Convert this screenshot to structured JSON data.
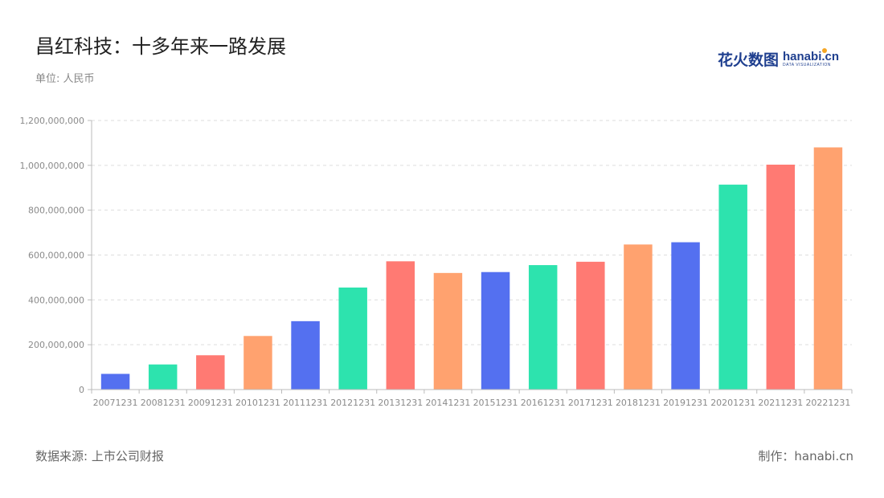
{
  "header": {
    "title": "昌红科技：十多年来一路发展",
    "unit": "单位: 人民币"
  },
  "logo": {
    "cn": "花火数图",
    "en": "hanabi.cn",
    "tagline": "DATA VISUALIZATION"
  },
  "footer": {
    "source": "数据来源: 上市公司财报",
    "credit": "制作：hanabi.cn"
  },
  "colors": {
    "palette": [
      "#5470f0",
      "#2de3ae",
      "#ff7a73",
      "#ffa26f"
    ],
    "grid": "#dddddd",
    "axis": "#bbbbbb"
  },
  "chart_data": {
    "type": "bar",
    "categories": [
      "20071231",
      "20081231",
      "20091231",
      "20101231",
      "20111231",
      "20121231",
      "20131231",
      "20141231",
      "20151231",
      "20161231",
      "20171231",
      "20181231",
      "20191231",
      "20201231",
      "20211231",
      "20221231"
    ],
    "values": [
      70000000,
      112000000,
      153000000,
      239000000,
      305000000,
      455000000,
      572000000,
      520000000,
      524000000,
      555000000,
      570000000,
      647000000,
      657000000,
      914000000,
      1003000000,
      1080000000
    ],
    "color_indices": [
      0,
      1,
      2,
      3,
      0,
      1,
      2,
      3,
      0,
      1,
      2,
      3,
      0,
      1,
      2,
      3
    ],
    "ylim": [
      0,
      1200000000
    ],
    "yticks": [
      0,
      200000000,
      400000000,
      600000000,
      800000000,
      1000000000,
      1200000000
    ],
    "ytick_labels": [
      "0",
      "200,000,000",
      "400,000,000",
      "600,000,000",
      "800,000,000",
      "1,000,000,000",
      "1,200,000,000"
    ],
    "grid": true,
    "legend": "none"
  }
}
